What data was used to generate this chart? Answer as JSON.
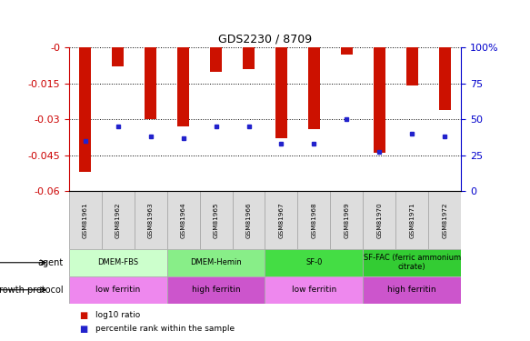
{
  "title": "GDS2230 / 8709",
  "samples": [
    "GSM81961",
    "GSM81962",
    "GSM81963",
    "GSM81964",
    "GSM81965",
    "GSM81966",
    "GSM81967",
    "GSM81968",
    "GSM81969",
    "GSM81970",
    "GSM81971",
    "GSM81972"
  ],
  "log10_ratio": [
    -0.052,
    -0.008,
    -0.03,
    -0.033,
    -0.01,
    -0.009,
    -0.038,
    -0.034,
    -0.003,
    -0.044,
    -0.016,
    -0.026
  ],
  "percentile_rank": [
    35,
    45,
    38,
    37,
    45,
    45,
    33,
    33,
    50,
    27,
    40,
    38
  ],
  "ylim_left": [
    -0.06,
    0.0
  ],
  "ylim_right": [
    0,
    100
  ],
  "yticks_left": [
    -0.06,
    -0.045,
    -0.03,
    -0.015,
    0.0
  ],
  "yticks_left_labels": [
    "-0.06",
    "-0.045",
    "-0.03",
    "-0.015",
    "-0"
  ],
  "yticks_right": [
    0,
    25,
    50,
    75,
    100
  ],
  "yticks_right_labels": [
    "0",
    "25",
    "50",
    "75",
    "100%"
  ],
  "bar_color": "#cc1100",
  "marker_color": "#2222cc",
  "agent_groups": [
    {
      "label": "DMEM-FBS",
      "start": 0,
      "end": 2,
      "color": "#ccffcc"
    },
    {
      "label": "DMEM-Hemin",
      "start": 3,
      "end": 5,
      "color": "#88ee88"
    },
    {
      "label": "SF-0",
      "start": 6,
      "end": 8,
      "color": "#44dd44"
    },
    {
      "label": "SF-FAC (ferric ammonium\ncitrate)",
      "start": 9,
      "end": 11,
      "color": "#33cc33"
    }
  ],
  "growth_groups": [
    {
      "label": "low ferritin",
      "start": 0,
      "end": 2,
      "color": "#ee88ee"
    },
    {
      "label": "high ferritin",
      "start": 3,
      "end": 5,
      "color": "#cc55cc"
    },
    {
      "label": "low ferritin",
      "start": 6,
      "end": 8,
      "color": "#ee88ee"
    },
    {
      "label": "high ferritin",
      "start": 9,
      "end": 11,
      "color": "#cc55cc"
    }
  ],
  "left_axis_color": "#cc0000",
  "right_axis_color": "#0000cc",
  "legend_items": [
    {
      "label": "log10 ratio",
      "color": "#cc1100"
    },
    {
      "label": "percentile rank within the sample",
      "color": "#2222cc"
    }
  ]
}
